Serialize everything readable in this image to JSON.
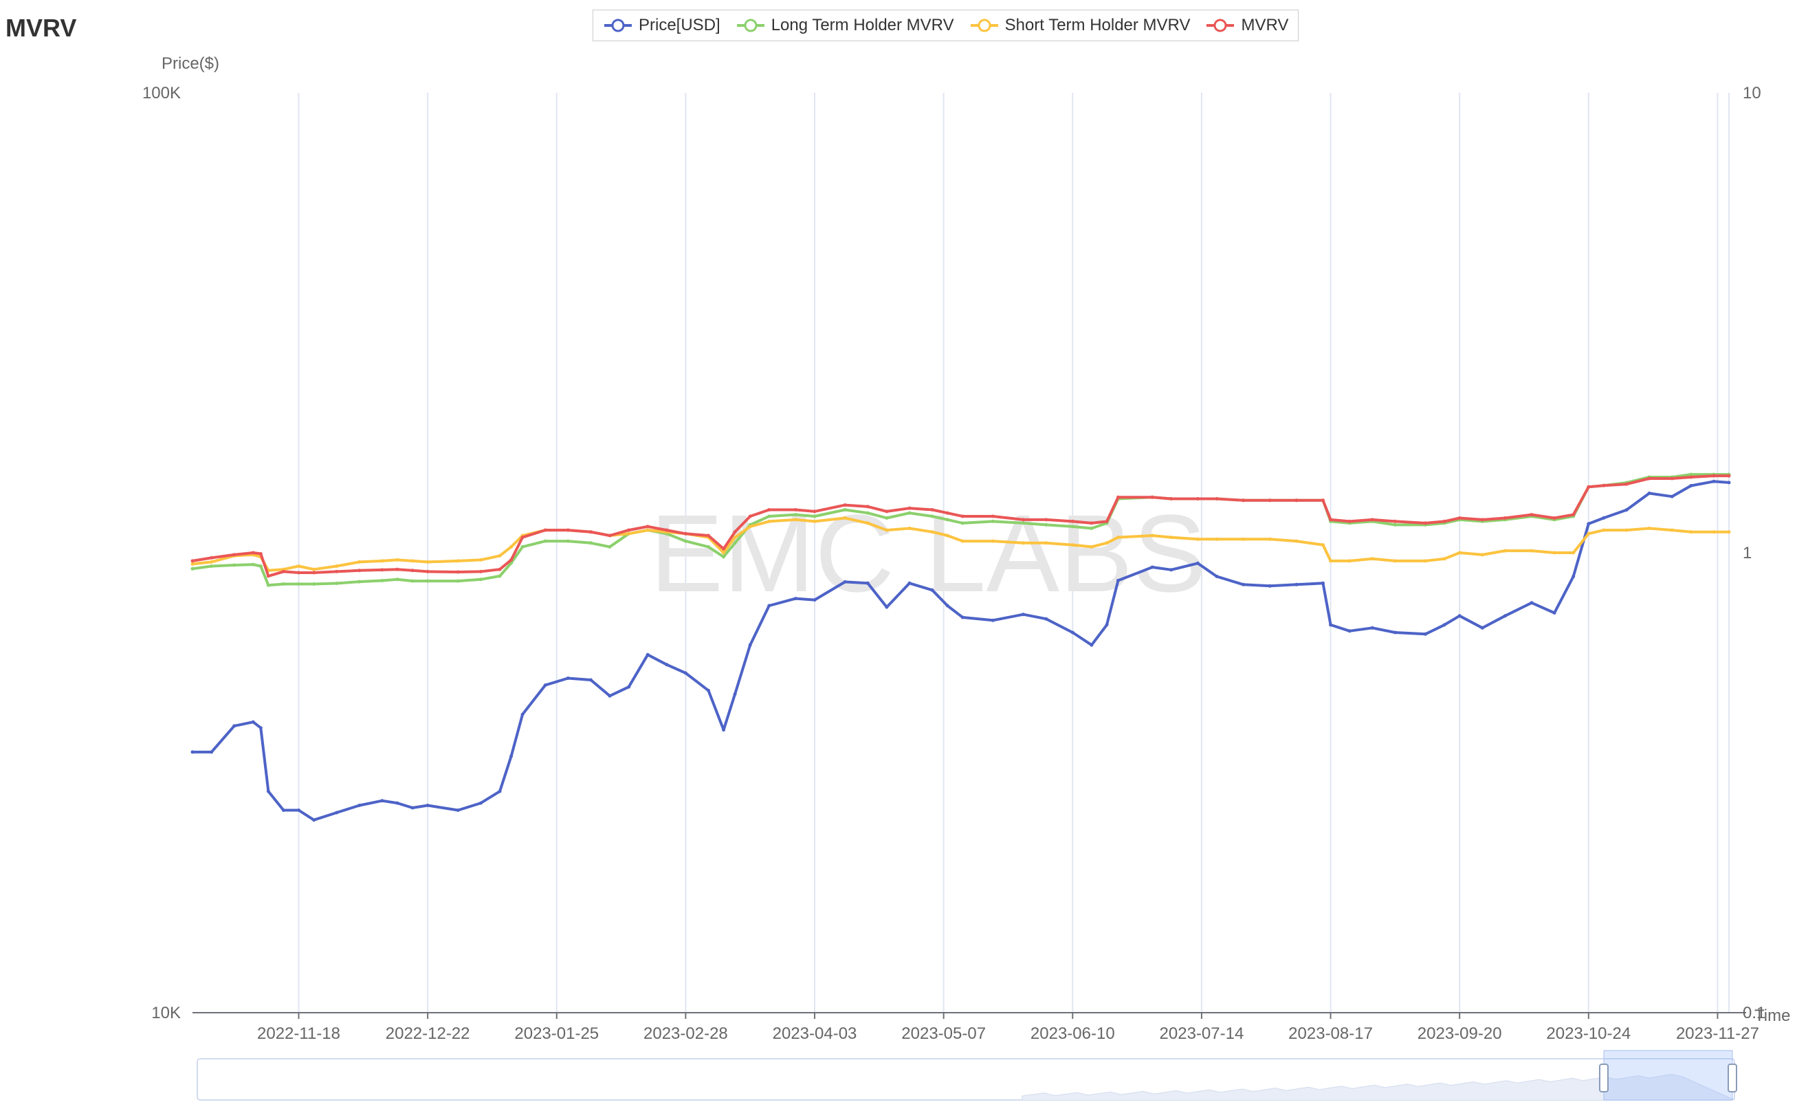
{
  "page": {
    "title": "MVRV"
  },
  "legend": {
    "items": [
      {
        "label": "Price[USD]",
        "color": "#4d63c7",
        "icon": "circle-line-icon"
      },
      {
        "label": "Long Term Holder MVRV",
        "color": "#8cd06c",
        "icon": "circle-line-icon"
      },
      {
        "label": "Short Term Holder MVRV",
        "color": "#fcc33f",
        "icon": "circle-line-icon"
      },
      {
        "label": "MVRV",
        "color": "#ea5656",
        "icon": "circle-line-icon"
      }
    ]
  },
  "watermark": "EMC LABS",
  "chart_data": {
    "type": "line",
    "ylabel": "Price($)",
    "xlabel": "Time",
    "y_left": {
      "scale": "log",
      "range": [
        10000,
        100000
      ],
      "ticks": [
        "100K",
        "10K"
      ]
    },
    "y_right": {
      "scale": "log",
      "range": [
        0.1,
        10
      ],
      "ticks": [
        "10",
        "1",
        "0.1"
      ]
    },
    "x_range": [
      "2022-10-21",
      "2023-11-30"
    ],
    "x_ticks": [
      "2022-11-18",
      "2022-12-22",
      "2023-01-25",
      "2023-02-28",
      "2023-04-03",
      "2023-05-07",
      "2023-06-10",
      "2023-07-14",
      "2023-08-17",
      "2023-09-20",
      "2023-10-24",
      "2023-11-27"
    ],
    "grid": {
      "vertical": true,
      "horizontal": false
    },
    "legend_position": "top-center",
    "dates": [
      "2022-10-21",
      "2022-10-26",
      "2022-11-01",
      "2022-11-06",
      "2022-11-08",
      "2022-11-10",
      "2022-11-14",
      "2022-11-18",
      "2022-11-22",
      "2022-11-28",
      "2022-12-04",
      "2022-12-10",
      "2022-12-14",
      "2022-12-18",
      "2022-12-22",
      "2022-12-30",
      "2023-01-05",
      "2023-01-10",
      "2023-01-13",
      "2023-01-16",
      "2023-01-22",
      "2023-01-28",
      "2023-02-03",
      "2023-02-08",
      "2023-02-13",
      "2023-02-18",
      "2023-02-23",
      "2023-02-28",
      "2023-03-06",
      "2023-03-10",
      "2023-03-13",
      "2023-03-17",
      "2023-03-22",
      "2023-03-29",
      "2023-04-03",
      "2023-04-11",
      "2023-04-17",
      "2023-04-22",
      "2023-04-28",
      "2023-05-04",
      "2023-05-08",
      "2023-05-12",
      "2023-05-20",
      "2023-05-28",
      "2023-06-03",
      "2023-06-10",
      "2023-06-15",
      "2023-06-19",
      "2023-06-22",
      "2023-07-01",
      "2023-07-06",
      "2023-07-13",
      "2023-07-18",
      "2023-07-25",
      "2023-08-01",
      "2023-08-08",
      "2023-08-15",
      "2023-08-17",
      "2023-08-22",
      "2023-08-28",
      "2023-09-03",
      "2023-09-11",
      "2023-09-16",
      "2023-09-20",
      "2023-09-26",
      "2023-10-02",
      "2023-10-09",
      "2023-10-15",
      "2023-10-20",
      "2023-10-24",
      "2023-10-28",
      "2023-11-03",
      "2023-11-09",
      "2023-11-15",
      "2023-11-20",
      "2023-11-26",
      "2023-11-30"
    ],
    "series": [
      {
        "name": "Price[USD]",
        "axis": "left",
        "values": [
          19200,
          19200,
          20500,
          20700,
          20400,
          17400,
          16600,
          16600,
          16200,
          16500,
          16800,
          17000,
          16900,
          16700,
          16800,
          16600,
          16900,
          17400,
          19000,
          21100,
          22700,
          23100,
          23000,
          22100,
          22600,
          24500,
          23900,
          23400,
          22400,
          20300,
          22200,
          25100,
          27700,
          28200,
          28100,
          29400,
          29300,
          27600,
          29300,
          28800,
          27700,
          26900,
          26700,
          27100,
          26800,
          25900,
          25100,
          26400,
          29500,
          30500,
          30300,
          30800,
          29800,
          29200,
          29100,
          29200,
          29300,
          26400,
          26000,
          26200,
          25900,
          25800,
          26400,
          27000,
          26200,
          27000,
          27900,
          27200,
          29800,
          34000,
          34500,
          35200,
          36700,
          36400,
          37400,
          37800,
          37700
        ]
      },
      {
        "name": "Long Term Holder MVRV",
        "axis": "right",
        "values": [
          0.923,
          0.935,
          0.94,
          0.943,
          0.935,
          0.85,
          0.855,
          0.855,
          0.855,
          0.858,
          0.865,
          0.87,
          0.875,
          0.868,
          0.868,
          0.868,
          0.875,
          0.89,
          0.95,
          1.03,
          1.06,
          1.06,
          1.05,
          1.03,
          1.1,
          1.12,
          1.1,
          1.06,
          1.03,
          0.98,
          1.05,
          1.15,
          1.2,
          1.21,
          1.2,
          1.24,
          1.22,
          1.19,
          1.22,
          1.2,
          1.18,
          1.16,
          1.17,
          1.16,
          1.15,
          1.14,
          1.13,
          1.16,
          1.31,
          1.32,
          1.31,
          1.31,
          1.31,
          1.3,
          1.3,
          1.3,
          1.3,
          1.17,
          1.16,
          1.17,
          1.15,
          1.15,
          1.16,
          1.18,
          1.17,
          1.18,
          1.2,
          1.18,
          1.2,
          1.39,
          1.4,
          1.42,
          1.46,
          1.46,
          1.48,
          1.48,
          1.48
        ]
      },
      {
        "name": "Short Term Holder MVRV",
        "axis": "right",
        "values": [
          0.945,
          0.955,
          0.985,
          0.99,
          0.98,
          0.915,
          0.92,
          0.935,
          0.92,
          0.935,
          0.955,
          0.96,
          0.965,
          0.96,
          0.955,
          0.96,
          0.965,
          0.985,
          1.03,
          1.09,
          1.12,
          1.12,
          1.11,
          1.09,
          1.1,
          1.12,
          1.11,
          1.1,
          1.08,
          1.0,
          1.08,
          1.14,
          1.17,
          1.18,
          1.17,
          1.19,
          1.16,
          1.12,
          1.13,
          1.11,
          1.09,
          1.06,
          1.06,
          1.05,
          1.05,
          1.04,
          1.03,
          1.05,
          1.08,
          1.09,
          1.08,
          1.07,
          1.07,
          1.07,
          1.07,
          1.06,
          1.04,
          0.96,
          0.96,
          0.97,
          0.96,
          0.96,
          0.97,
          1.0,
          0.99,
          1.01,
          1.01,
          1.0,
          1.0,
          1.1,
          1.12,
          1.12,
          1.13,
          1.12,
          1.11,
          1.11,
          1.11
        ]
      },
      {
        "name": "MVRV",
        "axis": "right",
        "values": [
          0.96,
          0.975,
          0.99,
          1.0,
          0.995,
          0.89,
          0.91,
          0.905,
          0.905,
          0.91,
          0.915,
          0.918,
          0.92,
          0.915,
          0.91,
          0.908,
          0.91,
          0.92,
          0.965,
          1.08,
          1.12,
          1.12,
          1.11,
          1.09,
          1.12,
          1.14,
          1.12,
          1.1,
          1.09,
          1.02,
          1.11,
          1.2,
          1.24,
          1.24,
          1.23,
          1.27,
          1.26,
          1.23,
          1.25,
          1.24,
          1.22,
          1.2,
          1.2,
          1.18,
          1.18,
          1.17,
          1.16,
          1.17,
          1.32,
          1.32,
          1.31,
          1.31,
          1.31,
          1.3,
          1.3,
          1.3,
          1.3,
          1.18,
          1.17,
          1.18,
          1.17,
          1.16,
          1.17,
          1.19,
          1.18,
          1.19,
          1.21,
          1.19,
          1.21,
          1.39,
          1.4,
          1.41,
          1.45,
          1.45,
          1.46,
          1.47,
          1.47
        ]
      }
    ]
  }
}
